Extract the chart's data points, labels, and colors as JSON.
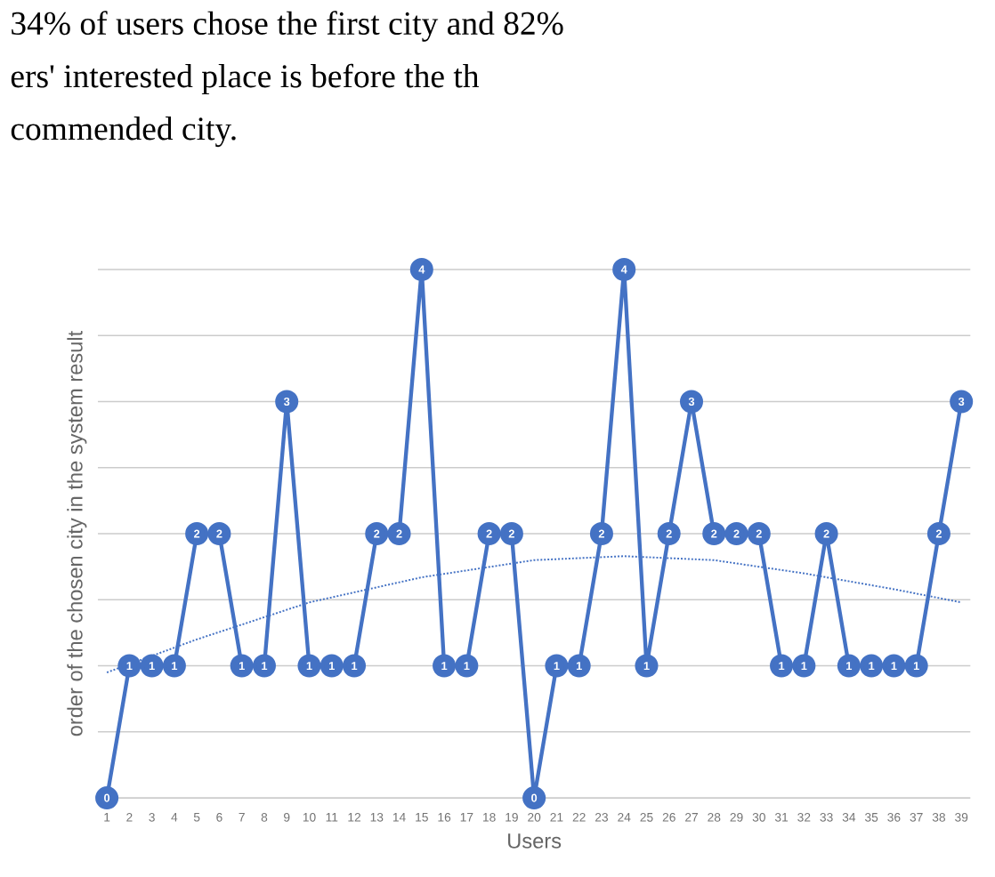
{
  "chart_data": {
    "type": "line",
    "annotations": [
      "34% of users chose the first city and 82%",
      "ers' interested place is before the th",
      "commended city."
    ],
    "xlabel": "Users",
    "ylabel": "order of the chosen city in the system result",
    "xlim": [
      0.6,
      39.4
    ],
    "xticks": [
      1,
      2,
      3,
      4,
      5,
      6,
      7,
      8,
      9,
      10,
      11,
      12,
      13,
      14,
      15,
      16,
      17,
      18,
      19,
      20,
      21,
      22,
      23,
      24,
      25,
      26,
      27,
      28,
      29,
      30,
      31,
      32,
      33,
      34,
      35,
      36,
      37,
      38,
      39
    ],
    "tick_labels": "x",
    "grid": "y",
    "series": [
      {
        "color": "#4472c4",
        "marker": "circle",
        "line_style": "solid",
        "data_labels": true,
        "x": [
          1,
          2,
          3,
          4,
          5,
          6,
          7,
          8,
          9,
          10,
          11,
          12,
          13,
          14,
          15,
          16,
          17,
          18,
          19,
          20,
          21,
          22,
          23,
          24,
          25,
          26,
          27,
          28,
          29,
          30,
          31,
          32,
          33,
          34,
          35,
          36,
          37,
          38,
          39
        ],
        "values": [
          0,
          1,
          1,
          1,
          2,
          2,
          1,
          1,
          3,
          1,
          1,
          1,
          2,
          2,
          4,
          1,
          1,
          2,
          2,
          0,
          1,
          1,
          2,
          4,
          1,
          2,
          3,
          2,
          2,
          2,
          1,
          1,
          2,
          1,
          1,
          1,
          1,
          2,
          3
        ]
      },
      {
        "type": "line",
        "color": "#4472c4",
        "marker": "none",
        "line_style": "dotted",
        "x": [
          1,
          5,
          10,
          15,
          20,
          24,
          28,
          32,
          36,
          39
        ],
        "values": [
          0.95,
          1.2,
          1.48,
          1.67,
          1.8,
          1.83,
          1.8,
          1.7,
          1.58,
          1.48
        ]
      }
    ]
  }
}
